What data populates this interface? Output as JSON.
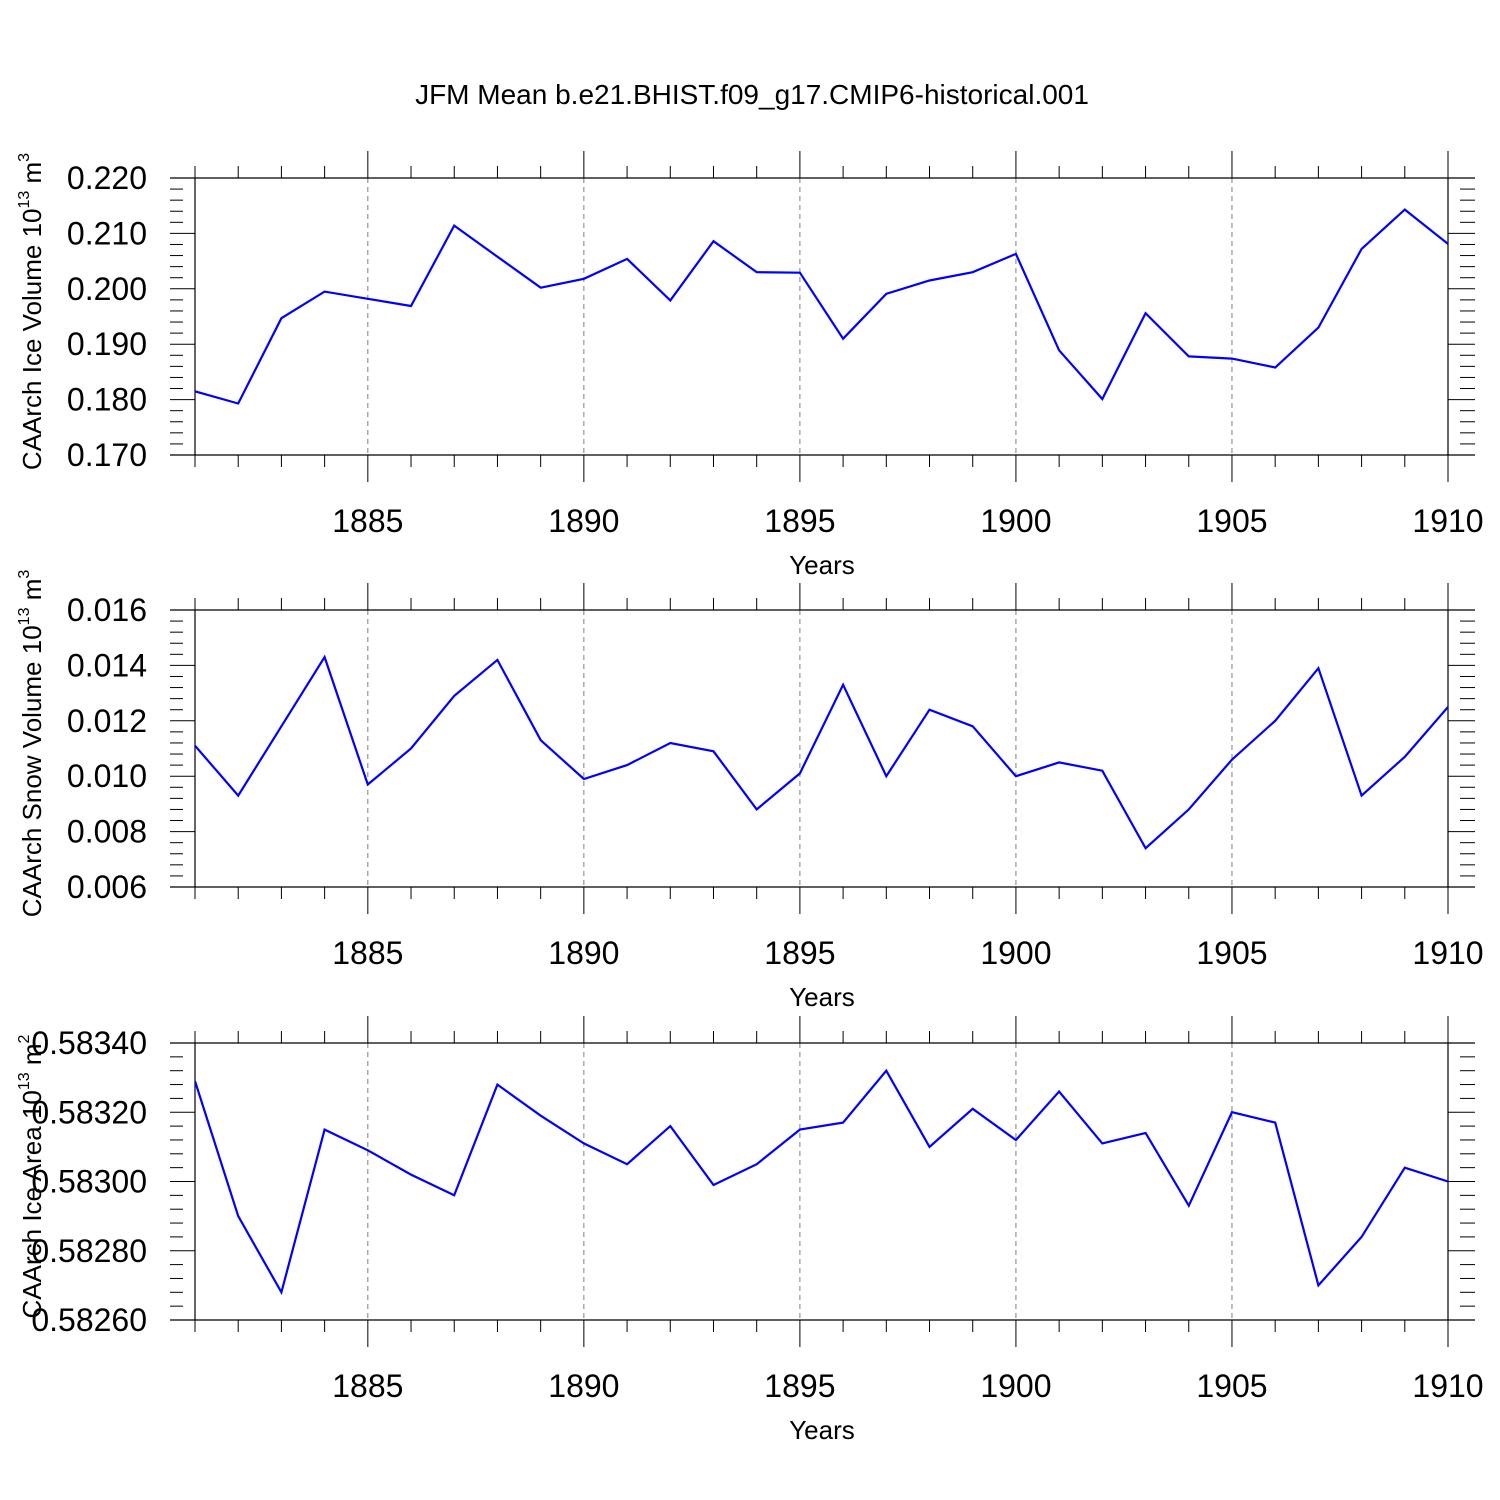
{
  "title": "JFM Mean b.e21.BHIST.f09_g17.CMIP6-historical.001",
  "colors": {
    "line": "#0000ff",
    "axis": "#000000",
    "grid": "#7f7f7f"
  },
  "chart_data": [
    {
      "type": "line",
      "name": "ice-volume",
      "ylabel": "CAArch Ice Volume 10",
      "ylabel_exponent": "13",
      "ylabel_unit": "m",
      "ylabel_unit_exponent": "3",
      "xlabel": "Years",
      "xlim": [
        1881,
        1910
      ],
      "ylim": [
        0.17,
        0.22
      ],
      "yticks": [
        0.17,
        0.18,
        0.19,
        0.2,
        0.21,
        0.22
      ],
      "ytick_labels": [
        "0.170",
        "0.180",
        "0.190",
        "0.200",
        "0.210",
        "0.220"
      ],
      "xticks": [
        1885,
        1890,
        1895,
        1900,
        1905,
        1910
      ],
      "xtick_labels": [
        "1885",
        "1890",
        "1895",
        "1900",
        "1905",
        "1910"
      ],
      "x": [
        1881,
        1882,
        1883,
        1884,
        1885,
        1886,
        1887,
        1888,
        1889,
        1890,
        1891,
        1892,
        1893,
        1894,
        1895,
        1896,
        1897,
        1898,
        1899,
        1900,
        1901,
        1902,
        1903,
        1904,
        1905,
        1906,
        1907,
        1908,
        1909,
        1910
      ],
      "values": [
        0.1815,
        0.1793,
        0.1947,
        0.1995,
        0.1982,
        0.1969,
        0.2114,
        0.2058,
        0.2002,
        0.2018,
        0.2054,
        0.1979,
        0.2086,
        0.203,
        0.2029,
        0.191,
        0.1991,
        0.2015,
        0.203,
        0.2063,
        0.1889,
        0.1801,
        0.1956,
        0.1878,
        0.1874,
        0.1858,
        0.193,
        0.2072,
        0.2143,
        0.2081
      ]
    },
    {
      "type": "line",
      "name": "snow-volume",
      "ylabel": "CAArch Snow Volume 10",
      "ylabel_exponent": "13",
      "ylabel_unit": "m",
      "ylabel_unit_exponent": "3",
      "xlabel": "Years",
      "xlim": [
        1881,
        1910
      ],
      "ylim": [
        0.006,
        0.016
      ],
      "yticks": [
        0.006,
        0.008,
        0.01,
        0.012,
        0.014,
        0.016
      ],
      "ytick_labels": [
        "0.006",
        "0.008",
        "0.010",
        "0.012",
        "0.014",
        "0.016"
      ],
      "xticks": [
        1885,
        1890,
        1895,
        1900,
        1905,
        1910
      ],
      "xtick_labels": [
        "1885",
        "1890",
        "1895",
        "1900",
        "1905",
        "1910"
      ],
      "x": [
        1881,
        1882,
        1883,
        1884,
        1885,
        1886,
        1887,
        1888,
        1889,
        1890,
        1891,
        1892,
        1893,
        1894,
        1895,
        1896,
        1897,
        1898,
        1899,
        1900,
        1901,
        1902,
        1903,
        1904,
        1905,
        1906,
        1907,
        1908,
        1909,
        1910
      ],
      "values": [
        0.0111,
        0.0093,
        0.0118,
        0.0143,
        0.0097,
        0.011,
        0.0129,
        0.0142,
        0.0113,
        0.0099,
        0.0104,
        0.0112,
        0.0109,
        0.0088,
        0.0101,
        0.0133,
        0.01,
        0.0124,
        0.0118,
        0.01,
        0.0105,
        0.0102,
        0.0074,
        0.0088,
        0.0106,
        0.012,
        0.0139,
        0.0093,
        0.0107,
        0.0125
      ]
    },
    {
      "type": "line",
      "name": "ice-area",
      "ylabel": "CAArch Ice Area 10",
      "ylabel_exponent": "13",
      "ylabel_unit": "m",
      "ylabel_unit_exponent": "2",
      "xlabel": "Years",
      "xlim": [
        1881,
        1910
      ],
      "ylim": [
        0.5826,
        0.5834
      ],
      "yticks": [
        0.5826,
        0.5828,
        0.583,
        0.5832,
        0.5834
      ],
      "ytick_labels": [
        "0.58260",
        "0.58280",
        "0.58300",
        "0.58320",
        "0.58340"
      ],
      "xticks": [
        1885,
        1890,
        1895,
        1900,
        1905,
        1910
      ],
      "xtick_labels": [
        "1885",
        "1890",
        "1895",
        "1900",
        "1905",
        "1910"
      ],
      "x": [
        1881,
        1882,
        1883,
        1884,
        1885,
        1886,
        1887,
        1888,
        1889,
        1890,
        1891,
        1892,
        1893,
        1894,
        1895,
        1896,
        1897,
        1898,
        1899,
        1900,
        1901,
        1902,
        1903,
        1904,
        1905,
        1906,
        1907,
        1908,
        1909,
        1910
      ],
      "values": [
        0.58329,
        0.5829,
        0.58268,
        0.58315,
        0.58309,
        0.58302,
        0.58296,
        0.58328,
        0.58319,
        0.58311,
        0.58305,
        0.58316,
        0.58299,
        0.58305,
        0.58315,
        0.58317,
        0.58332,
        0.5831,
        0.58321,
        0.58312,
        0.58326,
        0.58311,
        0.58314,
        0.58293,
        0.5832,
        0.58317,
        0.5827,
        0.58284,
        0.58304,
        0.583
      ]
    }
  ]
}
